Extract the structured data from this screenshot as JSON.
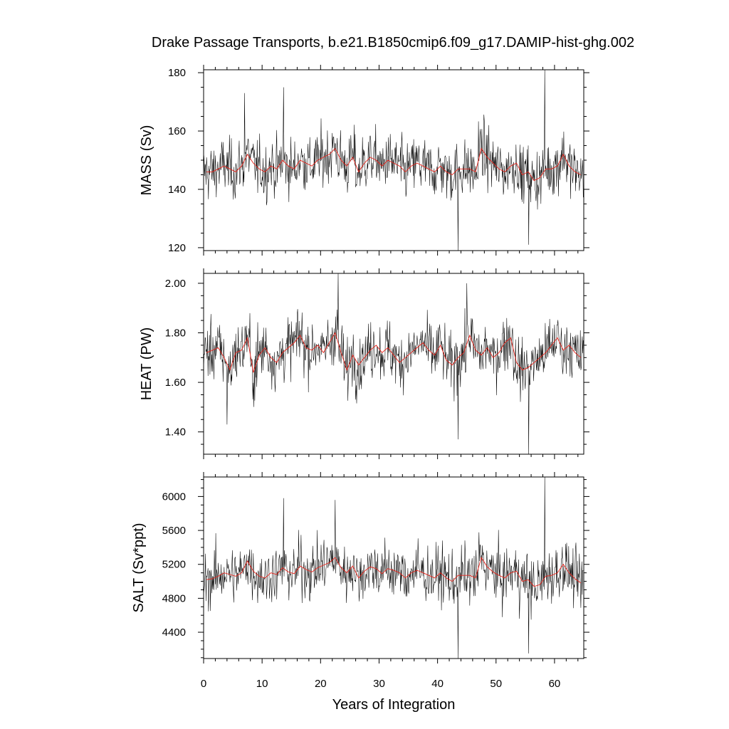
{
  "chart_data": {
    "type": "line",
    "title": "Drake Passage Transports, b.e21.B1850cmip6.f09_g17.DAMIP-hist-ghg.002",
    "xlabel": "Years of Integration",
    "xlim": [
      0,
      65
    ],
    "x_ticks": [
      0,
      10,
      20,
      30,
      40,
      50,
      60
    ],
    "x_tick_labels": [
      "0",
      "10",
      "20",
      "30",
      "40",
      "50",
      "60"
    ],
    "grid": false,
    "legend": "none",
    "colors": {
      "monthly": "#000000",
      "annual": "#e8231a"
    },
    "panels": [
      {
        "ylabel": "MASS (Sv)",
        "ylim": [
          119,
          181
        ],
        "y_ticks": [
          120,
          140,
          160,
          180
        ],
        "y_tick_labels": [
          "120",
          "140",
          "160",
          "180"
        ],
        "annual_years": [
          0.5,
          1.5,
          2.5,
          3.5,
          4.5,
          5.5,
          6.5,
          7.5,
          8.5,
          9.5,
          10.5,
          11.5,
          12.5,
          13.5,
          14.5,
          15.5,
          16.5,
          17.5,
          18.5,
          19.5,
          20.5,
          21.5,
          22.5,
          23.5,
          24.5,
          25.5,
          26.5,
          27.5,
          28.5,
          29.5,
          30.5,
          31.5,
          32.5,
          33.5,
          34.5,
          35.5,
          36.5,
          37.5,
          38.5,
          39.5,
          40.5,
          41.5,
          42.5,
          43.5,
          44.5,
          45.5,
          46.5,
          47.5,
          48.5,
          49.5,
          50.5,
          51.5,
          52.5,
          53.5,
          54.5,
          55.5,
          56.5,
          57.5,
          58.5,
          59.5,
          60.5,
          61.5,
          62.5,
          63.5,
          64.5
        ],
        "annual_mean": [
          146,
          146,
          147,
          148,
          147,
          146,
          148,
          152,
          149,
          147,
          146,
          148,
          147,
          150,
          148,
          147,
          150,
          149,
          148,
          150,
          151,
          152,
          154,
          150,
          148,
          151,
          146,
          149,
          151,
          150,
          148,
          150,
          149,
          148,
          146,
          148,
          149,
          148,
          147,
          146,
          148,
          146,
          145,
          147,
          147,
          147,
          146,
          154,
          151,
          149,
          147,
          146,
          148,
          149,
          145,
          146,
          143,
          144,
          147,
          147,
          148,
          152,
          148,
          146,
          145
        ],
        "monthly_extremes": [
          {
            "x": 43.5,
            "y": 119
          },
          {
            "x": 58.3,
            "y": 181
          },
          {
            "x": 55.6,
            "y": 121
          },
          {
            "x": 13.7,
            "y": 175
          },
          {
            "x": 7.0,
            "y": 173
          }
        ]
      },
      {
        "ylabel": "HEAT (PW)",
        "ylim": [
          1.31,
          2.04
        ],
        "y_ticks": [
          1.4,
          1.6,
          1.8,
          2.0
        ],
        "y_tick_labels": [
          "1.40",
          "1.60",
          "1.80",
          "2.00"
        ],
        "annual_years": [
          0.5,
          1.5,
          2.5,
          3.5,
          4.5,
          5.5,
          6.5,
          7.5,
          8.5,
          9.5,
          10.5,
          11.5,
          12.5,
          13.5,
          14.5,
          15.5,
          16.5,
          17.5,
          18.5,
          19.5,
          20.5,
          21.5,
          22.5,
          23.5,
          24.5,
          25.5,
          26.5,
          27.5,
          28.5,
          29.5,
          30.5,
          31.5,
          32.5,
          33.5,
          34.5,
          35.5,
          36.5,
          37.5,
          38.5,
          39.5,
          40.5,
          41.5,
          42.5,
          43.5,
          44.5,
          45.5,
          46.5,
          47.5,
          48.5,
          49.5,
          50.5,
          51.5,
          52.5,
          53.5,
          54.5,
          55.5,
          56.5,
          57.5,
          58.5,
          59.5,
          60.5,
          61.5,
          62.5,
          63.5,
          64.5
        ],
        "annual_mean": [
          1.72,
          1.73,
          1.74,
          1.7,
          1.65,
          1.72,
          1.73,
          1.78,
          1.64,
          1.71,
          1.74,
          1.7,
          1.68,
          1.72,
          1.74,
          1.76,
          1.79,
          1.74,
          1.73,
          1.75,
          1.72,
          1.76,
          1.8,
          1.72,
          1.65,
          1.71,
          1.67,
          1.7,
          1.73,
          1.75,
          1.72,
          1.74,
          1.71,
          1.68,
          1.7,
          1.72,
          1.74,
          1.76,
          1.73,
          1.71,
          1.75,
          1.69,
          1.67,
          1.7,
          1.72,
          1.79,
          1.73,
          1.71,
          1.74,
          1.7,
          1.72,
          1.76,
          1.78,
          1.68,
          1.65,
          1.66,
          1.68,
          1.7,
          1.72,
          1.75,
          1.78,
          1.73,
          1.75,
          1.72,
          1.7
        ],
        "monthly_extremes": [
          {
            "x": 23.0,
            "y": 2.04
          },
          {
            "x": 43.5,
            "y": 1.37
          },
          {
            "x": 55.6,
            "y": 1.31
          },
          {
            "x": 45.0,
            "y": 2.0
          },
          {
            "x": 4.0,
            "y": 1.43
          }
        ]
      },
      {
        "ylabel": "SALT (Sv*ppt)",
        "ylim": [
          4090,
          6230
        ],
        "y_ticks": [
          4400,
          4800,
          5200,
          5600,
          6000
        ],
        "y_tick_labels": [
          "4400",
          "4800",
          "5200",
          "5600",
          "6000"
        ],
        "annual_years": [
          0.5,
          1.5,
          2.5,
          3.5,
          4.5,
          5.5,
          6.5,
          7.5,
          8.5,
          9.5,
          10.5,
          11.5,
          12.5,
          13.5,
          14.5,
          15.5,
          16.5,
          17.5,
          18.5,
          19.5,
          20.5,
          21.5,
          22.5,
          23.5,
          24.5,
          25.5,
          26.5,
          27.5,
          28.5,
          29.5,
          30.5,
          31.5,
          32.5,
          33.5,
          34.5,
          35.5,
          36.5,
          37.5,
          38.5,
          39.5,
          40.5,
          41.5,
          42.5,
          43.5,
          44.5,
          45.5,
          46.5,
          47.5,
          48.5,
          49.5,
          50.5,
          51.5,
          52.5,
          53.5,
          54.5,
          55.5,
          56.5,
          57.5,
          58.5,
          59.5,
          60.5,
          61.5,
          62.5,
          63.5,
          64.5
        ],
        "annual_mean": [
          5020,
          5030,
          5060,
          5100,
          5080,
          5060,
          5100,
          5240,
          5120,
          5060,
          5040,
          5100,
          5080,
          5160,
          5110,
          5090,
          5180,
          5140,
          5110,
          5160,
          5190,
          5220,
          5280,
          5160,
          5100,
          5180,
          5040,
          5120,
          5170,
          5150,
          5090,
          5150,
          5130,
          5100,
          5040,
          5100,
          5130,
          5100,
          5070,
          5040,
          5100,
          5040,
          5000,
          5070,
          5070,
          5070,
          5040,
          5280,
          5170,
          5110,
          5070,
          5040,
          5100,
          5120,
          5000,
          5020,
          4940,
          4960,
          5060,
          5070,
          5100,
          5200,
          5100,
          5030,
          4980
        ],
        "monthly_extremes": [
          {
            "x": 43.5,
            "y": 4090
          },
          {
            "x": 58.3,
            "y": 6230
          },
          {
            "x": 55.6,
            "y": 4150
          },
          {
            "x": 13.7,
            "y": 5980
          },
          {
            "x": 22.5,
            "y": 5960
          }
        ]
      }
    ]
  }
}
